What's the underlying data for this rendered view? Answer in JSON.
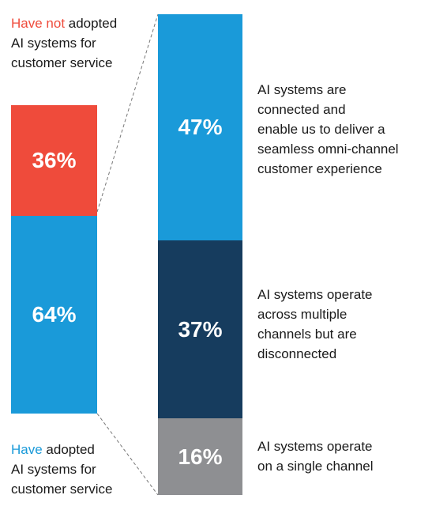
{
  "chart_data": [
    {
      "type": "bar",
      "stacked": true,
      "categories": [
        "Have not adopted AI systems for customer service",
        "Have adopted AI systems for customer service"
      ],
      "values": [
        36,
        64
      ],
      "value_labels": [
        "36%",
        "64%"
      ],
      "colors": [
        "#ef4b3b",
        "#1a9ad9"
      ],
      "labels": {
        "top": {
          "highlight": "Have not",
          "rest": " adopted",
          "line2": "AI systems for",
          "line3": "customer service"
        },
        "bottom": {
          "highlight": "Have",
          "rest": " adopted",
          "line2": "AI systems for",
          "line3": "customer service"
        }
      }
    },
    {
      "type": "bar",
      "stacked": true,
      "categories": [
        "AI systems are connected and enable us to deliver a seamless omni-channel customer experience",
        "AI systems operate across multiple channels but are disconnected",
        "AI systems operate on a single channel"
      ],
      "values": [
        47,
        37,
        16
      ],
      "value_labels": [
        "47%",
        "37%",
        "16%"
      ],
      "colors": [
        "#1a9ad9",
        "#163c5e",
        "#8e8f92"
      ],
      "descriptions": [
        [
          "AI systems are",
          "connected and",
          "enable us to deliver a",
          "seamless omni-channel",
          "customer experience"
        ],
        [
          "AI systems operate",
          "across multiple",
          "channels but are",
          "disconnected"
        ],
        [
          "AI systems operate",
          "on a single channel"
        ]
      ]
    }
  ]
}
